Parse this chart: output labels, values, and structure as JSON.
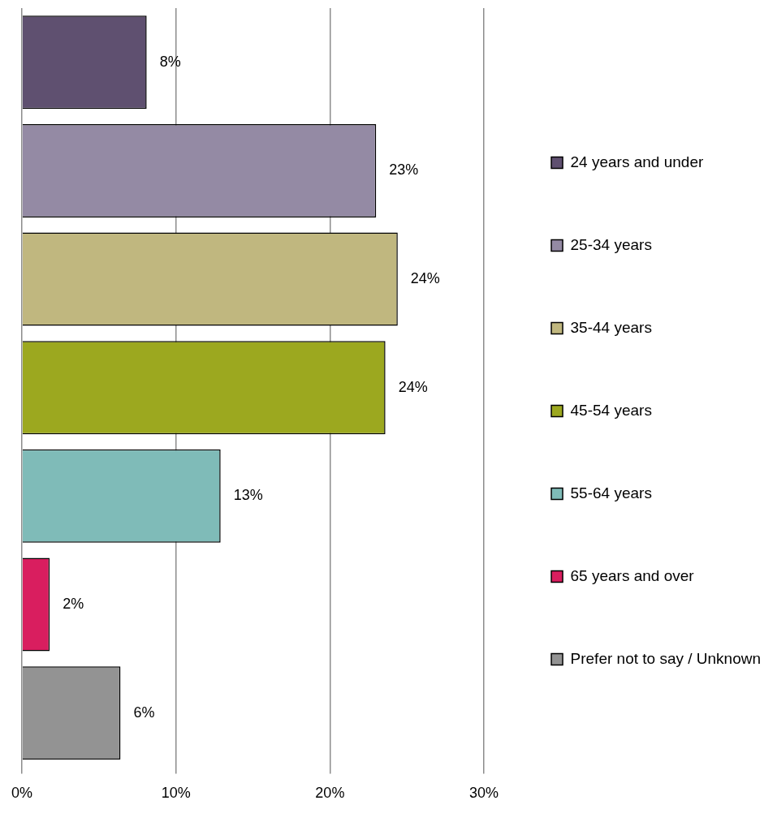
{
  "chart_data": {
    "type": "bar",
    "orientation": "horizontal",
    "categories": [
      null,
      null,
      null,
      null,
      null,
      null,
      null
    ],
    "series": [
      {
        "name": "24 years and under",
        "color": "#5f5070",
        "values": [
          8.1,
          null,
          null,
          null,
          null,
          null,
          null
        ],
        "value_labels": [
          "8%",
          null,
          null,
          null,
          null,
          null,
          null
        ]
      },
      {
        "name": "25-34 years",
        "color": "#948aa4",
        "values": [
          null,
          23.0,
          null,
          null,
          null,
          null,
          null
        ],
        "value_labels": [
          null,
          "23%",
          null,
          null,
          null,
          null,
          null
        ]
      },
      {
        "name": "35-44 years",
        "color": "#c0b77f",
        "values": [
          null,
          null,
          24.4,
          null,
          null,
          null,
          null
        ],
        "value_labels": [
          null,
          null,
          "24%",
          null,
          null,
          null,
          null
        ]
      },
      {
        "name": "45-54 years",
        "color": "#9ca81f",
        "values": [
          null,
          null,
          null,
          23.6,
          null,
          null,
          null
        ],
        "value_labels": [
          null,
          null,
          null,
          "24%",
          null,
          null,
          null
        ]
      },
      {
        "name": "55-64 years",
        "color": "#7fbbb8",
        "values": [
          null,
          null,
          null,
          null,
          12.9,
          null,
          null
        ],
        "value_labels": [
          null,
          null,
          null,
          null,
          "13%",
          null,
          null
        ]
      },
      {
        "name": "65 years and over",
        "color": "#d91e5f",
        "values": [
          null,
          null,
          null,
          null,
          null,
          1.8,
          null
        ],
        "value_labels": [
          null,
          null,
          null,
          null,
          null,
          "2%",
          null
        ]
      },
      {
        "name": "Prefer not to say / Unknown",
        "color": "#939393",
        "values": [
          null,
          null,
          null,
          null,
          null,
          null,
          6.4
        ],
        "value_labels": [
          null,
          null,
          null,
          null,
          null,
          null,
          "6%"
        ]
      }
    ],
    "xlim": [
      0,
      30
    ],
    "xticks": [
      {
        "value": 0,
        "label": "0%"
      },
      {
        "value": 10,
        "label": "10%"
      },
      {
        "value": 20,
        "label": "20%"
      },
      {
        "value": 30,
        "label": "30%"
      }
    ],
    "grid": "x",
    "legend": "right"
  }
}
